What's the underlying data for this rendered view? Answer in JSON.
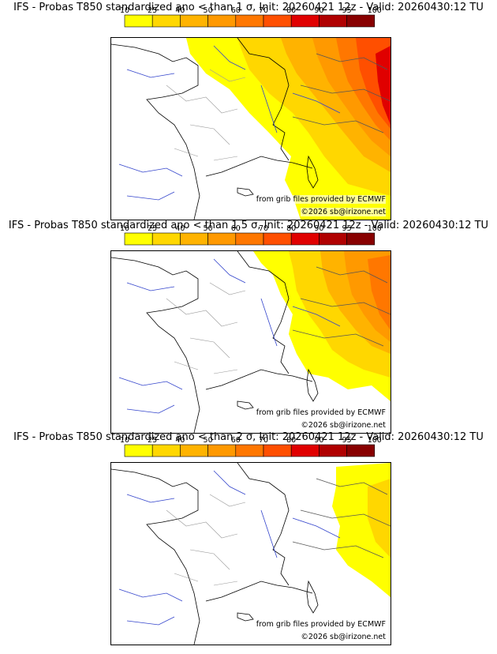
{
  "colorbar": {
    "ticks": [
      "10",
      "25",
      "40",
      "50",
      "60",
      "70",
      "80",
      "90",
      "95",
      "100"
    ],
    "colors": [
      "#ffff00",
      "#ffd700",
      "#ffb300",
      "#ff9900",
      "#ff7700",
      "#ff4f00",
      "#e00000",
      "#b00000",
      "#880000",
      "#550000"
    ]
  },
  "panels": [
    {
      "title": "IFS - Probas T850  standardized ano < than 1 σ, Init: 20260421 12z - Valid: 20260430:12 TU"
    },
    {
      "title": "IFS - Probas T850  standardized ano < than 1.5 σ, Init: 20260421 12z - Valid: 20260430:12 TU"
    },
    {
      "title": "IFS - Probas T850  standardized ano < than 2 σ, Init: 20260421 12z - Valid: 20260430:12 TU"
    }
  ],
  "credits": {
    "source": "from grib files provided by ECMWF",
    "copyright": "©2026 sb@irizone.net"
  }
}
